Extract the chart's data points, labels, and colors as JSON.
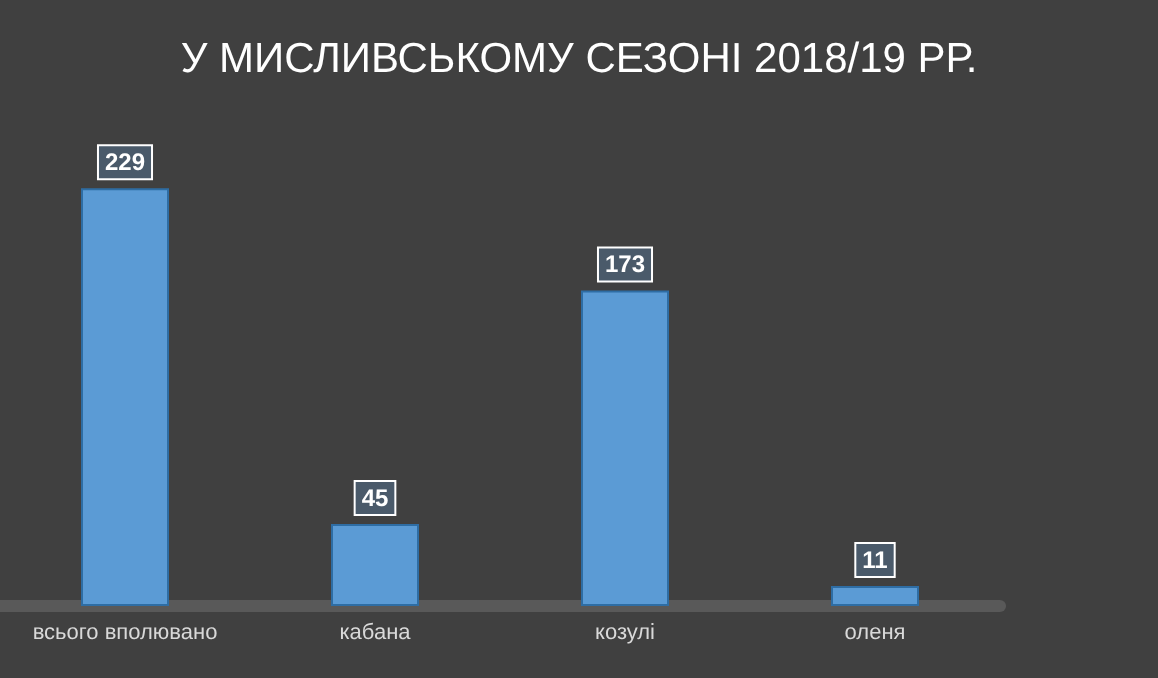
{
  "chart_data": {
    "type": "bar",
    "title": "У МИСЛИВСЬКОМУ СЕЗОНІ 2018/19 РР.",
    "categories": [
      "всього вполювано",
      "кабана",
      "козулі",
      "оленя"
    ],
    "values": [
      229,
      45,
      173,
      11
    ],
    "color": "#5b9bd5",
    "data_labels": true
  }
}
